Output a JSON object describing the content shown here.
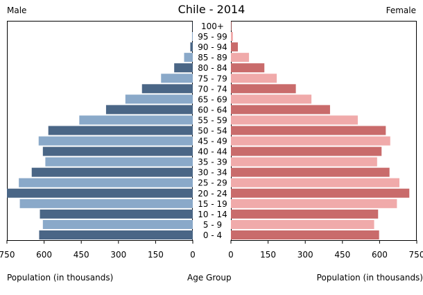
{
  "chart_data": {
    "type": "bar",
    "title": "Chile - 2014",
    "left_label": "Male",
    "right_label": "Female",
    "xlabel_left": "Population (in thousands)",
    "xlabel_center": "Age Group",
    "xlabel_right": "Population (in thousands)",
    "xlim": [
      0,
      750
    ],
    "ticks": [
      0,
      150,
      300,
      450,
      600,
      750
    ],
    "categories": [
      "0 - 4",
      "5 - 9",
      "10 - 14",
      "15 - 19",
      "20 - 24",
      "25 - 29",
      "30 - 34",
      "35 - 39",
      "40 - 44",
      "45 - 49",
      "50 - 54",
      "55 - 59",
      "60 - 64",
      "65 - 69",
      "70 - 74",
      "75 - 79",
      "80 - 84",
      "85 - 89",
      "90 - 94",
      "95 - 99",
      "100+"
    ],
    "series": [
      {
        "name": "Male",
        "values": [
          620,
          605,
          617,
          698,
          750,
          702,
          650,
          595,
          605,
          622,
          583,
          458,
          350,
          272,
          205,
          128,
          75,
          35,
          10,
          3,
          1
        ]
      },
      {
        "name": "Female",
        "values": [
          598,
          578,
          594,
          670,
          720,
          680,
          640,
          590,
          608,
          643,
          625,
          512,
          400,
          325,
          262,
          185,
          135,
          73,
          28,
          8,
          2
        ]
      }
    ],
    "colors": {
      "male_dark": "#4a6686",
      "male_light": "#8aa9c9",
      "female_dark": "#c96b6b",
      "female_light": "#f0aaaa"
    },
    "grid": false,
    "legend": "none"
  }
}
